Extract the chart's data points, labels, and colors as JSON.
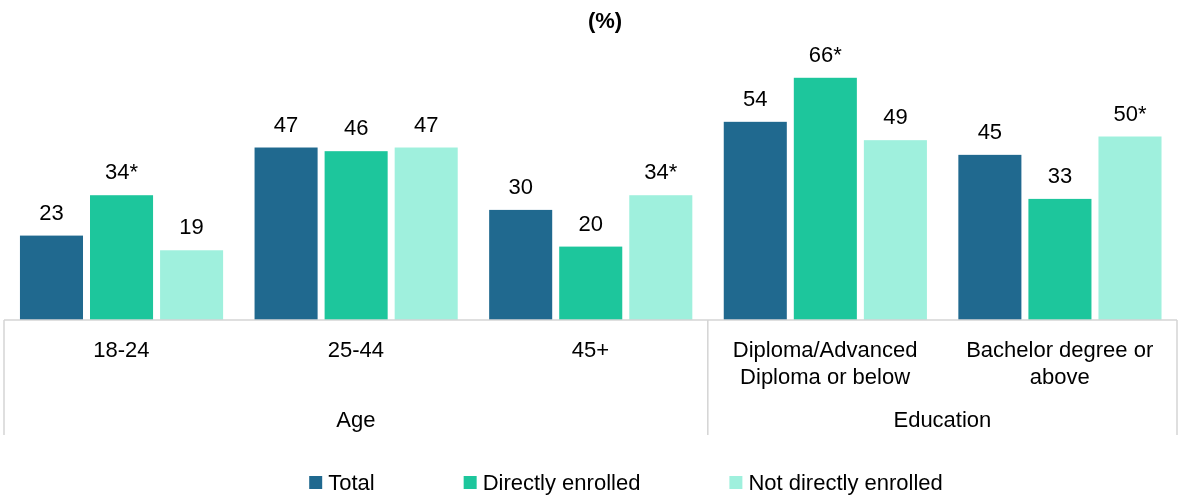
{
  "chart_data": {
    "type": "bar",
    "title": "(%)",
    "categories": [
      "18-24",
      "25-44",
      "45+",
      "Diploma/Advanced Diploma or below",
      "Bachelor degree or above"
    ],
    "series": [
      {
        "name": "Total",
        "color": "#20698f",
        "values": [
          23,
          47,
          30,
          54,
          45
        ],
        "value_labels": [
          "23",
          "47",
          "30",
          "54",
          "45"
        ]
      },
      {
        "name": "Directly enrolled",
        "color": "#1dc69c",
        "values": [
          34,
          46,
          20,
          66,
          33
        ],
        "value_labels": [
          "34*",
          "46",
          "20",
          "66*",
          "33"
        ]
      },
      {
        "name": "Not directly enrolled",
        "color": "#9ff0dd",
        "values": [
          19,
          47,
          34,
          49,
          50
        ],
        "value_labels": [
          "19",
          "47",
          "34*",
          "49",
          "50*"
        ]
      }
    ],
    "annotations": [
      "Age",
      "Education"
    ],
    "legend": "bottom"
  }
}
